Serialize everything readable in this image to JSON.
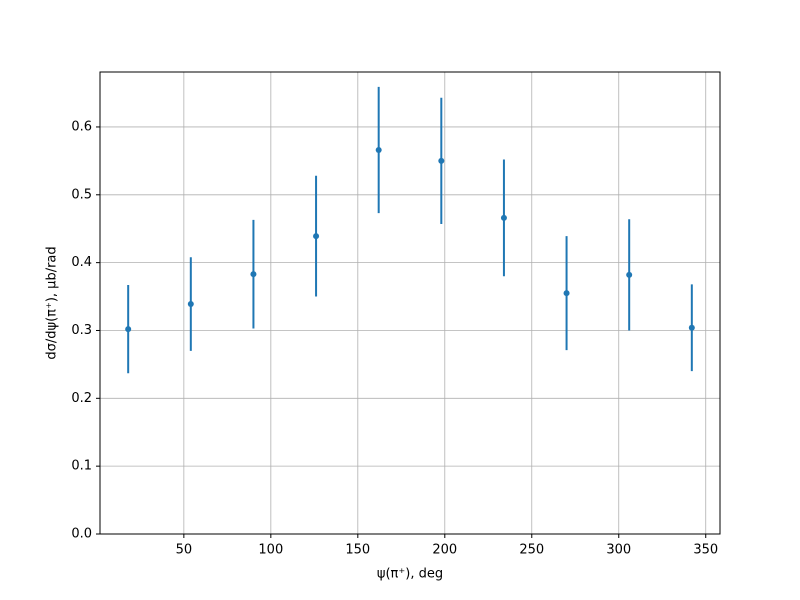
{
  "chart_data": {
    "type": "scatter",
    "x_label": "ψ(π⁺), deg",
    "y_label": "dσ/dψ(π⁺), μb/rad",
    "x": [
      18,
      54,
      90,
      126,
      162,
      198,
      234,
      270,
      306,
      342
    ],
    "series": [
      {
        "color": "#1f77b4",
        "values": [
          0.302,
          0.339,
          0.383,
          0.439,
          0.566,
          0.55,
          0.466,
          0.355,
          0.382,
          0.304
        ],
        "errors": [
          0.065,
          0.069,
          0.08,
          0.089,
          0.093,
          0.093,
          0.086,
          0.084,
          0.082,
          0.064
        ]
      }
    ],
    "xlim": [
      1.8,
      358.2
    ],
    "ylim": [
      0,
      0.681
    ],
    "xticks": [
      50,
      100,
      150,
      200,
      250,
      300,
      350
    ],
    "yticks": [
      {
        "value": 0,
        "label": "0.0"
      },
      0.1,
      0.2,
      0.3,
      0.4,
      0.5,
      0.6
    ],
    "grid": true
  }
}
